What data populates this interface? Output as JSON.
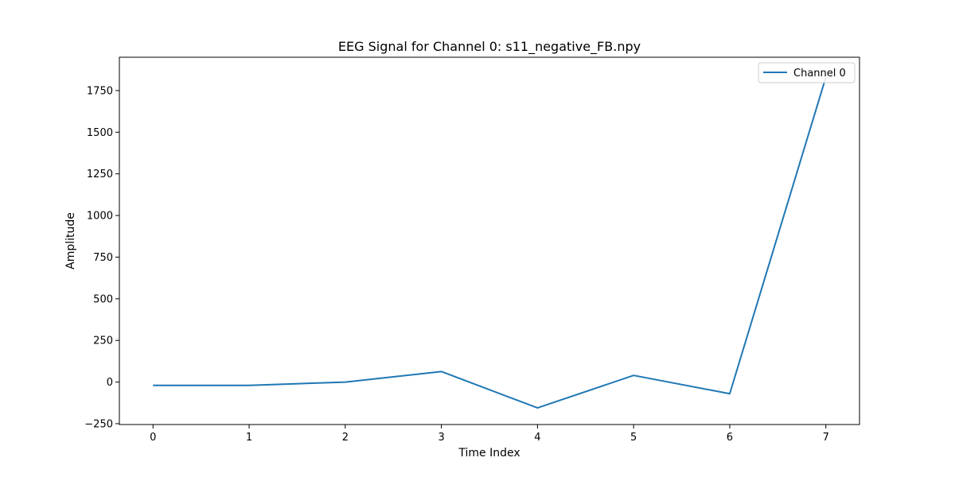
{
  "chart_data": {
    "type": "line",
    "title": "EEG Signal for Channel 0: s11_negative_FB.npy",
    "xlabel": "Time Index",
    "ylabel": "Amplitude",
    "x": [
      0,
      1,
      2,
      3,
      4,
      5,
      6,
      7
    ],
    "series": [
      {
        "name": "Channel 0",
        "color": "#1f77b4",
        "values": [
          -20,
          -20,
          0,
          63,
          -155,
          40,
          -70,
          1830
        ]
      }
    ],
    "xlim": [
      -0.35,
      7.35
    ],
    "ylim": [
      -255,
      1950
    ],
    "xticks": [
      0,
      1,
      2,
      3,
      4,
      5,
      6,
      7
    ],
    "yticks": [
      -250,
      0,
      250,
      500,
      750,
      1000,
      1250,
      1500,
      1750
    ],
    "xtick_labels": [
      "0",
      "1",
      "2",
      "3",
      "4",
      "5",
      "6",
      "7"
    ],
    "ytick_labels": [
      "−250",
      "0",
      "250",
      "500",
      "750",
      "1000",
      "1250",
      "1500",
      "1750"
    ],
    "grid": false,
    "legend_position": "top-right"
  }
}
